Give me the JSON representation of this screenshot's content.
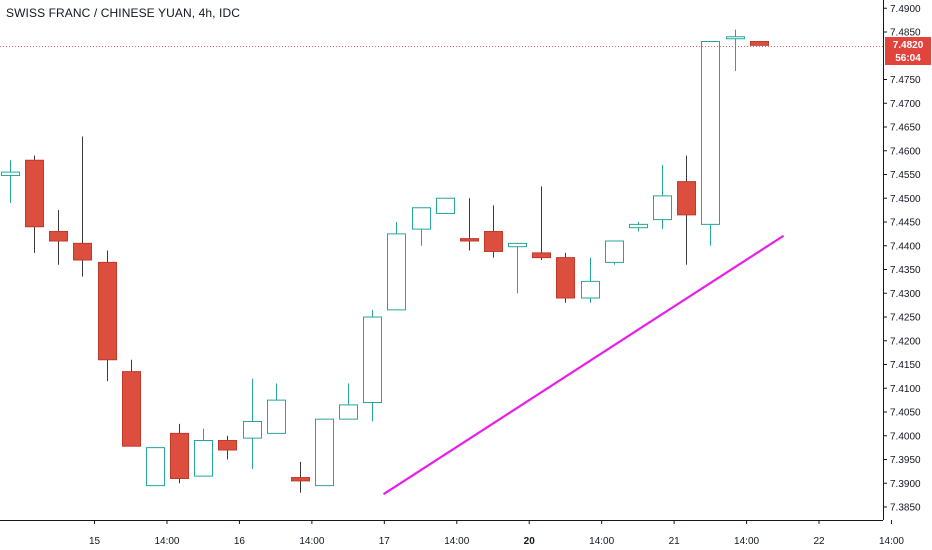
{
  "header": {
    "title": "SWISS FRANC / CHINESE YUAN, 4h, IDC"
  },
  "price_badge": {
    "price": "7.4820",
    "countdown": "56:04"
  },
  "colors": {
    "up": "#26a69a",
    "down": "#ef5350",
    "down_fill": "#dc4f3f",
    "trendline": "#e91ee9",
    "price_line": "#e06060",
    "grid": "#f0f3fa",
    "axis": "#131722"
  },
  "chart_data": {
    "type": "candlestick",
    "ylim": [
      7.383,
      7.491
    ],
    "y_ticks": [
      "7.4900",
      "7.4850",
      "7.4750",
      "7.4700",
      "7.4650",
      "7.4600",
      "7.4550",
      "7.4500",
      "7.4450",
      "7.4400",
      "7.4350",
      "7.4300",
      "7.4250",
      "7.4200",
      "7.4150",
      "7.4100",
      "7.4050",
      "7.4000",
      "7.3950",
      "7.3900",
      "7.3850"
    ],
    "x_ticks": [
      {
        "label": "15",
        "bold": false,
        "index": 3.5
      },
      {
        "label": "14:00",
        "bold": false,
        "index": 6.5
      },
      {
        "label": "16",
        "bold": false,
        "index": 9.5
      },
      {
        "label": "14:00",
        "bold": false,
        "index": 12.5
      },
      {
        "label": "17",
        "bold": false,
        "index": 15.5
      },
      {
        "label": "14:00",
        "bold": false,
        "index": 18.5
      },
      {
        "label": "20",
        "bold": true,
        "index": 21.5
      },
      {
        "label": "14:00",
        "bold": false,
        "index": 24.5
      },
      {
        "label": "21",
        "bold": false,
        "index": 27.5
      },
      {
        "label": "14:00",
        "bold": false,
        "index": 30.5
      },
      {
        "label": "22",
        "bold": false,
        "index": 33.5
      },
      {
        "label": "14:00",
        "bold": false,
        "index": 36.5
      }
    ],
    "candles": [
      {
        "o": 7.4548,
        "h": 7.458,
        "l": 7.449,
        "c": 7.4555
      },
      {
        "o": 7.458,
        "h": 7.459,
        "l": 7.4385,
        "c": 7.444
      },
      {
        "o": 7.443,
        "h": 7.4475,
        "l": 7.436,
        "c": 7.441
      },
      {
        "o": 7.4405,
        "h": 7.463,
        "l": 7.4335,
        "c": 7.437
      },
      {
        "o": 7.4365,
        "h": 7.439,
        "l": 7.4115,
        "c": 7.416
      },
      {
        "o": 7.4135,
        "h": 7.416,
        "l": 7.398,
        "c": 7.3978
      },
      {
        "o": 7.3895,
        "h": 7.3975,
        "l": 7.3895,
        "c": 7.3975
      },
      {
        "o": 7.4005,
        "h": 7.4025,
        "l": 7.39,
        "c": 7.391
      },
      {
        "o": 7.3915,
        "h": 7.4015,
        "l": 7.3915,
        "c": 7.399
      },
      {
        "o": 7.399,
        "h": 7.4,
        "l": 7.395,
        "c": 7.397
      },
      {
        "o": 7.3995,
        "h": 7.412,
        "l": 7.393,
        "c": 7.403
      },
      {
        "o": 7.4005,
        "h": 7.411,
        "l": 7.4005,
        "c": 7.4075
      },
      {
        "o": 7.3912,
        "h": 7.3945,
        "l": 7.388,
        "c": 7.3905
      },
      {
        "o": 7.3895,
        "h": 7.4035,
        "l": 7.3895,
        "c": 7.4035
      },
      {
        "o": 7.4035,
        "h": 7.411,
        "l": 7.4035,
        "c": 7.4065
      },
      {
        "o": 7.407,
        "h": 7.4265,
        "l": 7.403,
        "c": 7.425
      },
      {
        "o": 7.4265,
        "h": 7.445,
        "l": 7.4265,
        "c": 7.4425
      },
      {
        "o": 7.4435,
        "h": 7.448,
        "l": 7.44,
        "c": 7.448
      },
      {
        "o": 7.4468,
        "h": 7.45,
        "l": 7.4468,
        "c": 7.45
      },
      {
        "o": 7.4415,
        "h": 7.45,
        "l": 7.439,
        "c": 7.441
      },
      {
        "o": 7.443,
        "h": 7.4485,
        "l": 7.4375,
        "c": 7.4388
      },
      {
        "o": 7.4398,
        "h": 7.4405,
        "l": 7.43,
        "c": 7.4405
      },
      {
        "o": 7.4385,
        "h": 7.4525,
        "l": 7.437,
        "c": 7.4375
      },
      {
        "o": 7.4375,
        "h": 7.4385,
        "l": 7.428,
        "c": 7.429
      },
      {
        "o": 7.429,
        "h": 7.4375,
        "l": 7.428,
        "c": 7.4325
      },
      {
        "o": 7.4365,
        "h": 7.441,
        "l": 7.436,
        "c": 7.441
      },
      {
        "o": 7.4438,
        "h": 7.445,
        "l": 7.443,
        "c": 7.4445
      },
      {
        "o": 7.4455,
        "h": 7.457,
        "l": 7.4435,
        "c": 7.4505
      },
      {
        "o": 7.4535,
        "h": 7.459,
        "l": 7.436,
        "c": 7.4465
      },
      {
        "o": 7.4445,
        "h": 7.483,
        "l": 7.44,
        "c": 7.483
      },
      {
        "o": 7.484,
        "h": 7.4855,
        "l": 7.4768,
        "c": 7.484
      },
      {
        "o": 7.483,
        "h": 7.483,
        "l": 7.4822,
        "c": 7.4822
      }
    ],
    "trendline": {
      "from": {
        "index": 15.5,
        "price": 7.3878
      },
      "to": {
        "index": 32.0,
        "price": 7.442
      }
    },
    "current_price": 7.482,
    "grid": false
  }
}
